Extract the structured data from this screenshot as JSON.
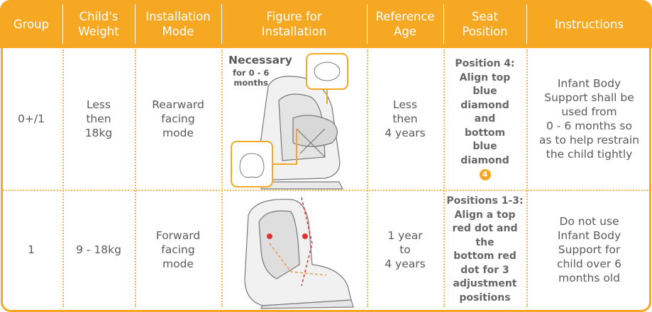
{
  "table": {
    "header": [
      [
        "Group"
      ],
      [
        "Child's",
        "Weight"
      ],
      [
        "Installation",
        "Mode"
      ],
      [
        "Figure for",
        "Installation"
      ],
      [
        "Reference",
        "Age"
      ],
      [
        "Seat",
        "Position"
      ],
      [
        "Instructions"
      ]
    ],
    "rows": [
      {
        "group": "0+/1",
        "weight": [
          "Less",
          "then",
          "18kg"
        ],
        "mode": [
          "Rearward",
          "facing",
          "mode"
        ],
        "figure": {
          "label": "Necessary",
          "note": [
            "for 0 - 6",
            "months"
          ]
        },
        "age": [
          "Less",
          "then",
          "4 years"
        ],
        "position": [
          "Position 4:",
          "Align top",
          "blue",
          "diamond",
          "and",
          "bottom",
          "blue",
          "diamond"
        ],
        "badge": "4",
        "instructions": [
          "Infant Body",
          "Support shall be",
          "used from",
          "0 - 6 months so",
          "as to help restrain",
          "the child tightly"
        ]
      },
      {
        "group": "1",
        "weight": [
          "9 - 18kg"
        ],
        "mode": [
          "Forward",
          "facing",
          "mode"
        ],
        "age": [
          "1 year",
          "to",
          "4 years"
        ],
        "position": [
          "Positions 1-3:",
          "Align a top",
          "red dot and",
          "the",
          "bottom red",
          "dot for 3",
          "adjustment",
          "positions"
        ],
        "instructions": [
          "Do not use",
          "Infant Body",
          "Support for",
          "child over 6",
          "months old"
        ]
      }
    ]
  }
}
